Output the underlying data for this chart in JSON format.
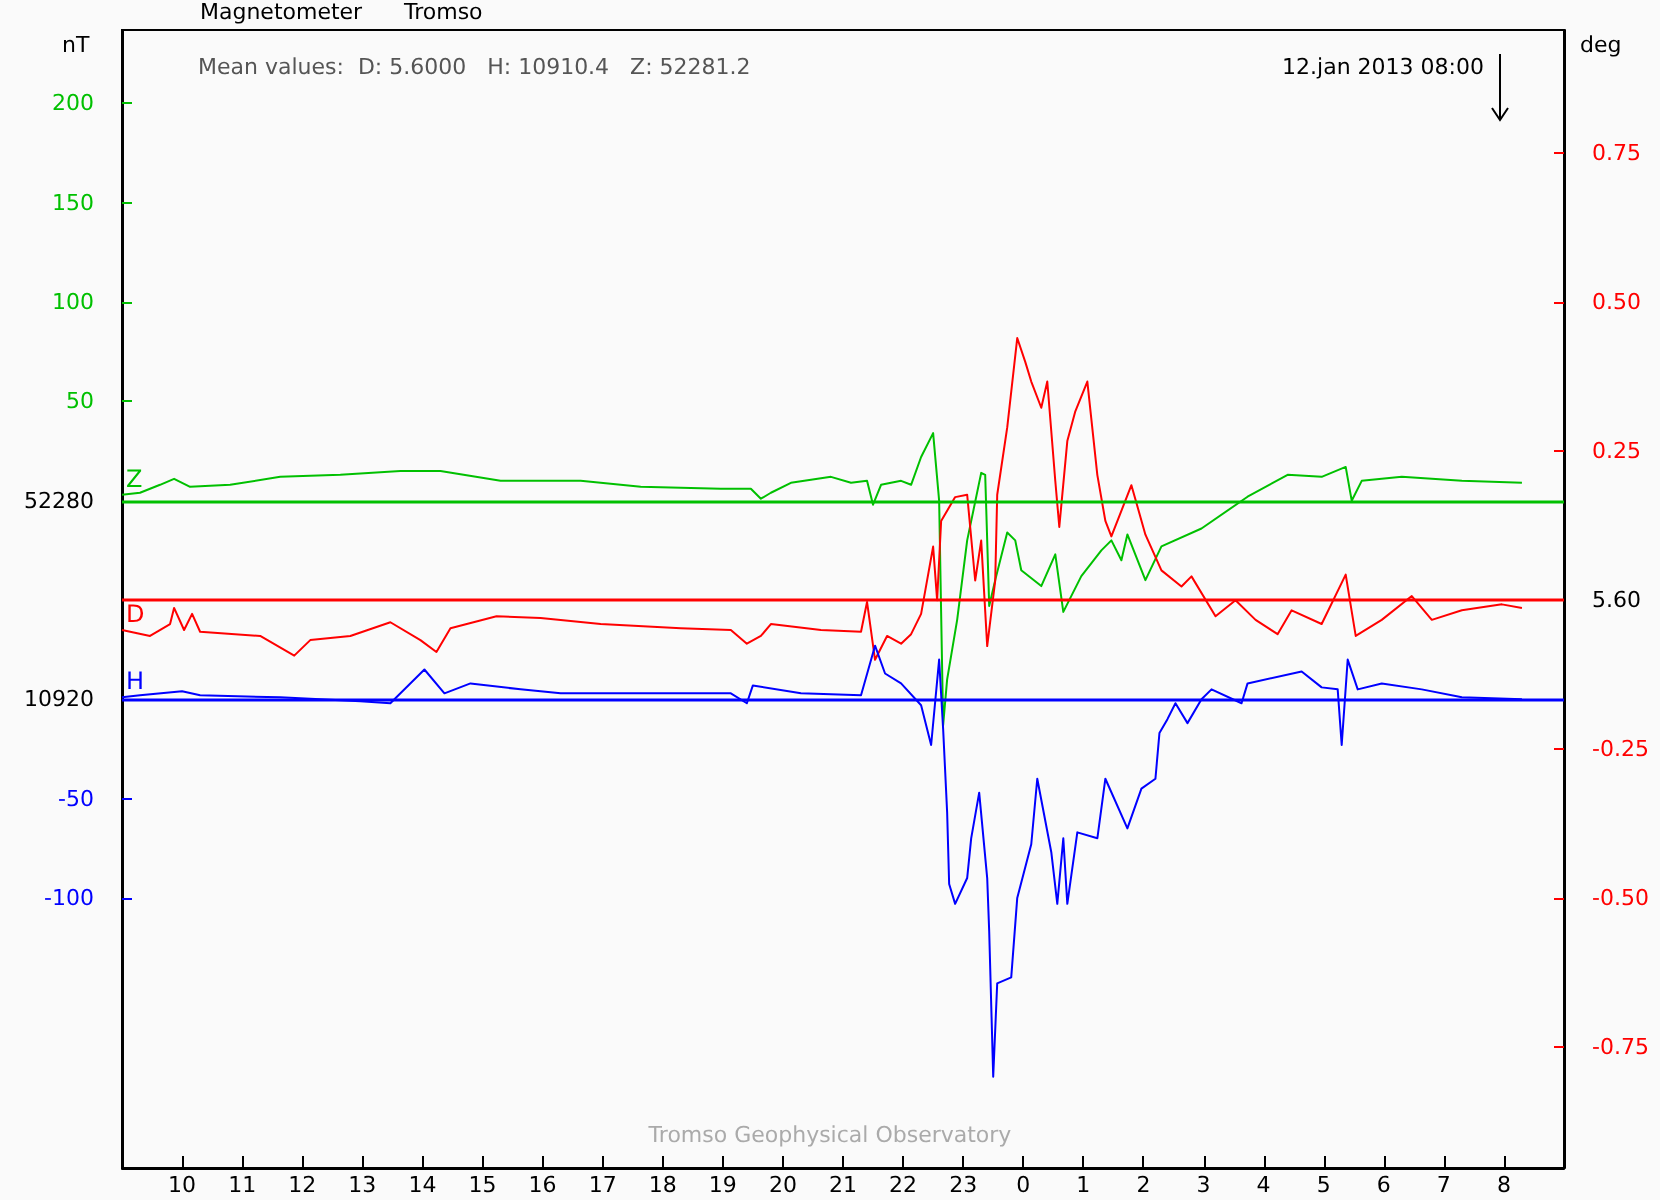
{
  "chart_data": {
    "type": "line",
    "title": "Magnetometer",
    "subtitle": "Tromso",
    "ylabel": "nT",
    "y2label": "deg",
    "annotations": [
      "Mean values:  D: 5.6000   H: 10910.4   Z: 52281.2",
      "12.jan 2013 08:00",
      "Tromso Geophysical Observatory",
      "52280",
      "5.60",
      "10920"
    ],
    "xlim": [
      "2013-01-11T09:00",
      "2013-01-12T09:00"
    ],
    "xticks": [
      {
        "value": "2013-01-11T10:00",
        "label": "10"
      },
      {
        "value": "2013-01-11T11:00",
        "label": "11"
      },
      {
        "value": "2013-01-11T12:00",
        "label": "12"
      },
      {
        "value": "2013-01-11T13:00",
        "label": "13"
      },
      {
        "value": "2013-01-11T14:00",
        "label": "14"
      },
      {
        "value": "2013-01-11T15:00",
        "label": "15"
      },
      {
        "value": "2013-01-11T16:00",
        "label": "16"
      },
      {
        "value": "2013-01-11T17:00",
        "label": "17"
      },
      {
        "value": "2013-01-11T18:00",
        "label": "18"
      },
      {
        "value": "2013-01-11T19:00",
        "label": "19"
      },
      {
        "value": "2013-01-11T20:00",
        "label": "20"
      },
      {
        "value": "2013-01-11T21:00",
        "label": "21"
      },
      {
        "value": "2013-01-11T22:00",
        "label": "22"
      },
      {
        "value": "2013-01-11T23:00",
        "label": "23"
      },
      {
        "value": "2013-01-12T00:00",
        "label": "0"
      },
      {
        "value": "2013-01-12T01:00",
        "label": "1"
      },
      {
        "value": "2013-01-12T02:00",
        "label": "2"
      },
      {
        "value": "2013-01-12T03:00",
        "label": "3"
      },
      {
        "value": "2013-01-12T04:00",
        "label": "4"
      },
      {
        "value": "2013-01-12T05:00",
        "label": "5"
      },
      {
        "value": "2013-01-12T06:00",
        "label": "6"
      },
      {
        "value": "2013-01-12T07:00",
        "label": "7"
      },
      {
        "value": "2013-01-12T08:00",
        "label": "8"
      }
    ],
    "ylim": [
      -336,
      237
    ],
    "yticks": [
      50,
      100,
      150,
      200
    ],
    "y2lim": [
      -0.953,
      0.957
    ],
    "y2ticks": [
      0.75,
      {
        "value": 0.5,
        "label": "0.50"
      },
      0.25,
      -0.25,
      {
        "value": -0.5,
        "label": "-0.50"
      },
      -0.75
    ],
    "y3lim": [
      -236,
      337
    ],
    "y3ticks": [
      -50,
      -100
    ],
    "ref_lines": [
      {
        "axis": "y",
        "value": 0,
        "color": "#00c000"
      },
      {
        "axis": "y2",
        "value": 0,
        "color": "#ff0000"
      },
      {
        "axis": "y3",
        "value": 0,
        "color": "#0000ff"
      }
    ],
    "grid": false,
    "marker": "none",
    "line_style": "solid",
    "series": [
      {
        "name": "Z",
        "color": "#00c000",
        "axis": "y",
        "x": [
          "2013-01-11T09:00",
          "2013-01-11T09:18",
          "2013-01-11T09:38",
          "2013-01-11T09:52",
          "2013-01-11T10:08",
          "2013-01-11T10:48",
          "2013-01-11T11:38",
          "2013-01-11T12:38",
          "2013-01-11T13:38",
          "2013-01-11T14:18",
          "2013-01-11T15:18",
          "2013-01-11T16:38",
          "2013-01-11T17:38",
          "2013-01-11T18:58",
          "2013-01-11T19:28",
          "2013-01-11T19:38",
          "2013-01-11T19:48",
          "2013-01-11T20:08",
          "2013-01-11T20:48",
          "2013-01-11T21:08",
          "2013-01-11T21:24",
          "2013-01-11T21:30",
          "2013-01-11T21:38",
          "2013-01-11T21:58",
          "2013-01-11T22:08",
          "2013-01-11T22:18",
          "2013-01-11T22:30",
          "2013-01-11T22:36",
          "2013-01-11T22:40",
          "2013-01-11T22:44",
          "2013-01-11T22:54",
          "2013-01-11T23:04",
          "2013-01-11T23:18",
          "2013-01-11T23:22",
          "2013-01-11T23:26",
          "2013-01-11T23:32",
          "2013-01-11T23:44",
          "2013-01-11T23:52",
          "2013-01-11T23:58",
          "2013-01-12T00:18",
          "2013-01-12T00:32",
          "2013-01-12T00:40",
          "2013-01-12T00:58",
          "2013-01-12T01:18",
          "2013-01-12T01:28",
          "2013-01-12T01:38",
          "2013-01-12T01:44",
          "2013-01-12T02:02",
          "2013-01-12T02:18",
          "2013-01-12T02:58",
          "2013-01-12T03:44",
          "2013-01-12T04:24",
          "2013-01-12T04:58",
          "2013-01-12T05:22",
          "2013-01-12T05:28",
          "2013-01-12T05:38",
          "2013-01-12T06:18",
          "2013-01-12T07:18",
          "2013-01-12T08:18"
        ],
        "values": [
          3,
          4,
          8,
          11,
          7,
          8,
          12,
          13,
          15,
          15,
          10,
          10,
          7,
          6,
          6,
          1,
          4,
          9,
          12,
          9,
          10,
          -2,
          8,
          10,
          8,
          22,
          34,
          0,
          -113,
          -90,
          -60,
          -20,
          14,
          13,
          -53,
          -40,
          -16,
          -20,
          -35,
          -43,
          -27,
          -56,
          -38,
          -25,
          -20,
          -30,
          -17,
          -40,
          -23,
          -14,
          2,
          13,
          12,
          17,
          0,
          10,
          12,
          10,
          9
        ]
      },
      {
        "name": "D",
        "color": "#ff0000",
        "axis": "y2",
        "x": [
          "2013-01-11T09:00",
          "2013-01-11T09:28",
          "2013-01-11T09:48",
          "2013-01-11T09:52",
          "2013-01-11T10:02",
          "2013-01-11T10:10",
          "2013-01-11T10:18",
          "2013-01-11T11:18",
          "2013-01-11T11:52",
          "2013-01-11T12:08",
          "2013-01-11T12:48",
          "2013-01-11T13:28",
          "2013-01-11T13:58",
          "2013-01-11T14:14",
          "2013-01-11T14:28",
          "2013-01-11T15:14",
          "2013-01-11T15:58",
          "2013-01-11T16:58",
          "2013-01-11T18:18",
          "2013-01-11T19:08",
          "2013-01-11T19:24",
          "2013-01-11T19:38",
          "2013-01-11T19:48",
          "2013-01-11T20:38",
          "2013-01-11T21:18",
          "2013-01-11T21:24",
          "2013-01-11T21:32",
          "2013-01-11T21:44",
          "2013-01-11T21:58",
          "2013-01-11T22:08",
          "2013-01-11T22:18",
          "2013-01-11T22:30",
          "2013-01-11T22:34",
          "2013-01-11T22:38",
          "2013-01-11T22:52",
          "2013-01-11T23:04",
          "2013-01-11T23:12",
          "2013-01-11T23:18",
          "2013-01-11T23:24",
          "2013-01-11T23:32",
          "2013-01-11T23:34",
          "2013-01-11T23:44",
          "2013-01-11T23:54",
          "2013-01-12T00:02",
          "2013-01-12T00:08",
          "2013-01-12T00:18",
          "2013-01-12T00:24",
          "2013-01-12T00:32",
          "2013-01-12T00:36",
          "2013-01-12T00:44",
          "2013-01-12T00:52",
          "2013-01-12T01:04",
          "2013-01-12T01:14",
          "2013-01-12T01:22",
          "2013-01-12T01:28",
          "2013-01-12T01:48",
          "2013-01-12T02:02",
          "2013-01-12T02:18",
          "2013-01-12T02:38",
          "2013-01-12T02:48",
          "2013-01-12T03:12",
          "2013-01-12T03:32",
          "2013-01-12T03:52",
          "2013-01-12T04:14",
          "2013-01-12T04:28",
          "2013-01-12T04:58",
          "2013-01-12T05:22",
          "2013-01-12T05:32",
          "2013-01-12T05:58",
          "2013-01-12T06:28",
          "2013-01-12T06:48",
          "2013-01-12T07:18",
          "2013-01-12T07:58",
          "2013-01-12T08:18"
        ],
        "values": [
          -0.05,
          -0.06,
          -0.04,
          -0.013,
          -0.05,
          -0.023,
          -0.053,
          -0.06,
          -0.093,
          -0.067,
          -0.06,
          -0.037,
          -0.067,
          -0.087,
          -0.047,
          -0.027,
          -0.03,
          -0.04,
          -0.047,
          -0.05,
          -0.073,
          -0.06,
          -0.04,
          -0.05,
          -0.053,
          -0.003,
          -0.1,
          -0.06,
          -0.073,
          -0.057,
          -0.023,
          0.09,
          0.0,
          0.133,
          0.173,
          0.177,
          0.033,
          0.1,
          -0.077,
          0.033,
          0.177,
          0.29,
          0.44,
          0.4,
          0.367,
          0.323,
          0.367,
          0.2,
          0.123,
          0.267,
          0.317,
          0.367,
          0.21,
          0.133,
          0.107,
          0.193,
          0.11,
          0.05,
          0.023,
          0.04,
          -0.027,
          0.0,
          -0.033,
          -0.057,
          -0.017,
          -0.04,
          0.043,
          -0.06,
          -0.033,
          0.007,
          -0.033,
          -0.017,
          -0.007,
          -0.013
        ]
      },
      {
        "name": "H",
        "color": "#0000ff",
        "axis": "y3",
        "x": [
          "2013-01-11T09:00",
          "2013-01-11T09:18",
          "2013-01-11T10:00",
          "2013-01-11T10:18",
          "2013-01-11T11:38",
          "2013-01-11T12:58",
          "2013-01-11T13:28",
          "2013-01-11T14:02",
          "2013-01-11T14:22",
          "2013-01-11T14:48",
          "2013-01-11T15:38",
          "2013-01-11T16:18",
          "2013-01-11T17:58",
          "2013-01-11T19:08",
          "2013-01-11T19:24",
          "2013-01-11T19:30",
          "2013-01-11T20:18",
          "2013-01-11T21:18",
          "2013-01-11T21:32",
          "2013-01-11T21:42",
          "2013-01-11T21:58",
          "2013-01-11T22:18",
          "2013-01-11T22:28",
          "2013-01-11T22:36",
          "2013-01-11T22:40",
          "2013-01-11T22:44",
          "2013-01-11T22:46",
          "2013-01-11T22:52",
          "2013-01-11T23:04",
          "2013-01-11T23:08",
          "2013-01-11T23:16",
          "2013-01-11T23:24",
          "2013-01-11T23:26",
          "2013-01-11T23:30",
          "2013-01-11T23:34",
          "2013-01-11T23:48",
          "2013-01-11T23:54",
          "2013-01-12T00:08",
          "2013-01-12T00:14",
          "2013-01-12T00:28",
          "2013-01-12T00:34",
          "2013-01-12T00:40",
          "2013-01-12T00:44",
          "2013-01-12T00:54",
          "2013-01-12T01:14",
          "2013-01-12T01:22",
          "2013-01-12T01:44",
          "2013-01-12T01:58",
          "2013-01-12T02:12",
          "2013-01-12T02:16",
          "2013-01-12T02:24",
          "2013-01-12T02:32",
          "2013-01-12T02:44",
          "2013-01-12T02:58",
          "2013-01-12T03:08",
          "2013-01-12T03:38",
          "2013-01-12T03:44",
          "2013-01-12T04:38",
          "2013-01-12T04:58",
          "2013-01-12T05:14",
          "2013-01-12T05:18",
          "2013-01-12T05:24",
          "2013-01-12T05:34",
          "2013-01-12T05:58",
          "2013-01-12T06:38",
          "2013-01-12T07:18",
          "2013-01-12T08:18"
        ],
        "values": [
          1,
          2,
          4,
          2,
          1,
          -1,
          -2,
          15,
          3,
          8,
          5,
          3,
          3,
          3,
          -2,
          7,
          3,
          2,
          27,
          13,
          8,
          -3,
          -23,
          20,
          -15,
          -57,
          -93,
          -103,
          -90,
          -70,
          -47,
          -90,
          -117,
          -190,
          -143,
          -140,
          -100,
          -73,
          -40,
          -77,
          -103,
          -70,
          -103,
          -67,
          -70,
          -40,
          -65,
          -45,
          -40,
          -17,
          -10,
          -2,
          -12,
          0,
          5,
          -2,
          8,
          14,
          6,
          5,
          -23,
          20,
          5,
          8,
          5,
          1,
          0
        ]
      }
    ]
  }
}
